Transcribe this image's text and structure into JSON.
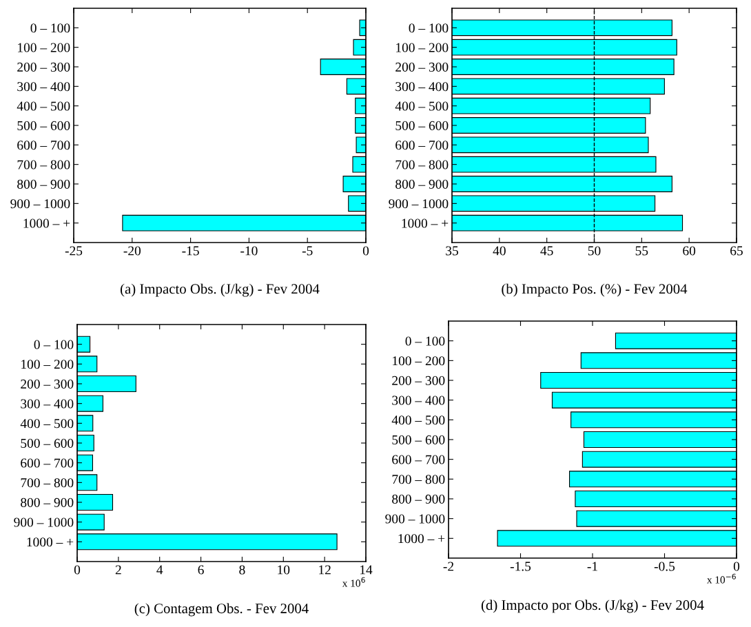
{
  "chart_data": [
    {
      "type": "bar",
      "orientation": "horizontal",
      "title": "(a) Impacto Obs. (J/kg) - Fev 2004",
      "categories": [
        "0 – 100",
        "100 – 200",
        "200 – 300",
        "300 – 400",
        "400 – 500",
        "500 – 600",
        "600 – 700",
        "700 – 800",
        "800 – 900",
        "900 – 1000",
        "1000 – +"
      ],
      "values": [
        -0.53,
        -1.06,
        -3.88,
        -1.63,
        -0.9,
        -0.9,
        -0.82,
        -1.12,
        -1.94,
        -1.49,
        -20.82
      ],
      "color": "#00ffff",
      "xlim": [
        -25,
        0
      ],
      "xticks": [
        -25,
        -20,
        -15,
        -10,
        -5,
        0
      ]
    },
    {
      "type": "bar",
      "orientation": "horizontal",
      "title": "(b) Impacto Pos. (%) - Fev 2004",
      "categories": [
        "0 – 100",
        "100 – 200",
        "200 – 300",
        "300 – 400",
        "400 – 500",
        "500 – 600",
        "600 – 700",
        "700 – 800",
        "800 – 900",
        "900 – 1000",
        "1000 – +"
      ],
      "values": [
        58.2,
        58.7,
        58.4,
        57.4,
        55.9,
        55.4,
        55.7,
        56.5,
        58.2,
        56.4,
        59.3
      ],
      "color": "#00ffff",
      "xlim": [
        35,
        65
      ],
      "xticks": [
        35,
        40,
        45,
        50,
        55,
        60,
        65
      ],
      "ref_lines": [
        {
          "axis": "x",
          "value": 50,
          "color": "#000000",
          "line_style": "dashed"
        }
      ]
    },
    {
      "type": "bar",
      "orientation": "horizontal",
      "title": "(c) Contagem Obs. - Fev 2004",
      "categories": [
        "0 – 100",
        "100 – 200",
        "200 – 300",
        "300 – 400",
        "400 – 500",
        "500 – 600",
        "600 – 700",
        "700 – 800",
        "800 – 900",
        "900 – 1000",
        "1000 – +"
      ],
      "values": [
        0.62,
        0.96,
        2.85,
        1.25,
        0.76,
        0.81,
        0.75,
        0.96,
        1.72,
        1.31,
        12.6
      ],
      "color": "#00ffff",
      "xlim": [
        0,
        14
      ],
      "xticks": [
        0,
        2,
        4,
        6,
        8,
        10,
        12,
        14
      ],
      "annotations": [
        "x 10$^{6}$"
      ]
    },
    {
      "type": "bar",
      "orientation": "horizontal",
      "title": "(d) Impacto por Obs. (J/kg) - Fev 2004",
      "categories": [
        "0 – 100",
        "100 – 200",
        "200 – 300",
        "300 – 400",
        "400 – 500",
        "500 – 600",
        "600 – 700",
        "700 – 800",
        "800 – 900",
        "900 – 1000",
        "1000 – +"
      ],
      "values": [
        -0.84,
        -1.08,
        -1.36,
        -1.28,
        -1.15,
        -1.06,
        -1.07,
        -1.16,
        -1.12,
        -1.11,
        -1.66
      ],
      "color": "#00ffff",
      "xlim": [
        -2,
        0
      ],
      "xticks": [
        -2,
        -1.5,
        -1,
        -0.5,
        0
      ],
      "annotations": [
        "x 10$^{−6}$"
      ]
    }
  ]
}
